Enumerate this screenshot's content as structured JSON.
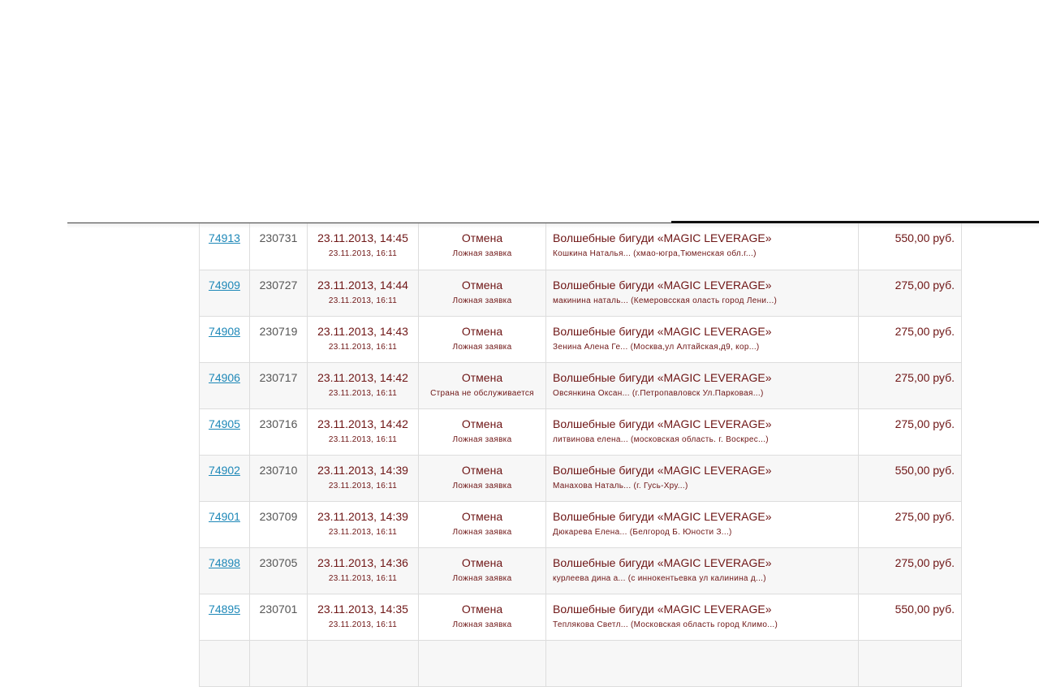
{
  "orders": [
    {
      "id": "74913",
      "num": "230731",
      "created": "23.11.2013, 14:45",
      "updated": "23.11.2013, 16:11",
      "status": "Отмена",
      "reason": "Ложная заявка",
      "product": "Волшебные бигуди «MAGIC LEVERAGE»",
      "customer": "Кошкина Наталья... (хмао-югра,Тюменская обл.г...)",
      "price": "550,00 руб."
    },
    {
      "id": "74909",
      "num": "230727",
      "created": "23.11.2013, 14:44",
      "updated": "23.11.2013, 16:11",
      "status": "Отмена",
      "reason": "Ложная заявка",
      "product": "Волшебные бигуди «MAGIC LEVERAGE»",
      "customer": "макинина наталь... (Кемеровсская оласть город Лени...)",
      "price": "275,00 руб."
    },
    {
      "id": "74908",
      "num": "230719",
      "created": "23.11.2013, 14:43",
      "updated": "23.11.2013, 16:11",
      "status": "Отмена",
      "reason": "Ложная заявка",
      "product": "Волшебные бигуди «MAGIC LEVERAGE»",
      "customer": "Зенина Алена Ге... (Москва,ул Алтайская,д9, кор...)",
      "price": "275,00 руб."
    },
    {
      "id": "74906",
      "num": "230717",
      "created": "23.11.2013, 14:42",
      "updated": "23.11.2013, 16:11",
      "status": "Отмена",
      "reason": "Страна не обслуживается",
      "product": "Волшебные бигуди «MAGIC LEVERAGE»",
      "customer": "Овсянкина Оксан... (г.Петропавловск Ул.Парковая...)",
      "price": "275,00 руб."
    },
    {
      "id": "74905",
      "num": "230716",
      "created": "23.11.2013, 14:42",
      "updated": "23.11.2013, 16:11",
      "status": "Отмена",
      "reason": "Ложная заявка",
      "product": "Волшебные бигуди «MAGIC LEVERAGE»",
      "customer": "литвинова елена... (московская область. г. Воскрес...)",
      "price": "275,00 руб."
    },
    {
      "id": "74902",
      "num": "230710",
      "created": "23.11.2013, 14:39",
      "updated": "23.11.2013, 16:11",
      "status": "Отмена",
      "reason": "Ложная заявка",
      "product": "Волшебные бигуди «MAGIC LEVERAGE»",
      "customer": "Манахова Наталь... (г. Гусь-Хру...)",
      "price": "550,00 руб."
    },
    {
      "id": "74901",
      "num": "230709",
      "created": "23.11.2013, 14:39",
      "updated": "23.11.2013, 16:11",
      "status": "Отмена",
      "reason": "Ложная заявка",
      "product": "Волшебные бигуди «MAGIC LEVERAGE»",
      "customer": "Дюкарева Елена... (Белгород Б. Юности З...)",
      "price": "275,00 руб."
    },
    {
      "id": "74898",
      "num": "230705",
      "created": "23.11.2013, 14:36",
      "updated": "23.11.2013, 16:11",
      "status": "Отмена",
      "reason": "Ложная заявка",
      "product": "Волшебные бигуди «MAGIC LEVERAGE»",
      "customer": "курлеева дина а... (с иннокентьевка ул калинина д...)",
      "price": "275,00 руб."
    },
    {
      "id": "74895",
      "num": "230701",
      "created": "23.11.2013, 14:35",
      "updated": "23.11.2013, 16:11",
      "status": "Отмена",
      "reason": "Ложная заявка",
      "product": "Волшебные бигуди «MAGIC LEVERAGE»",
      "customer": "Теплякова Светл... (Московская область город Климо...)",
      "price": "550,00 руб."
    }
  ],
  "colors": {
    "link": "#1e88b8",
    "text": "#6e1515"
  }
}
